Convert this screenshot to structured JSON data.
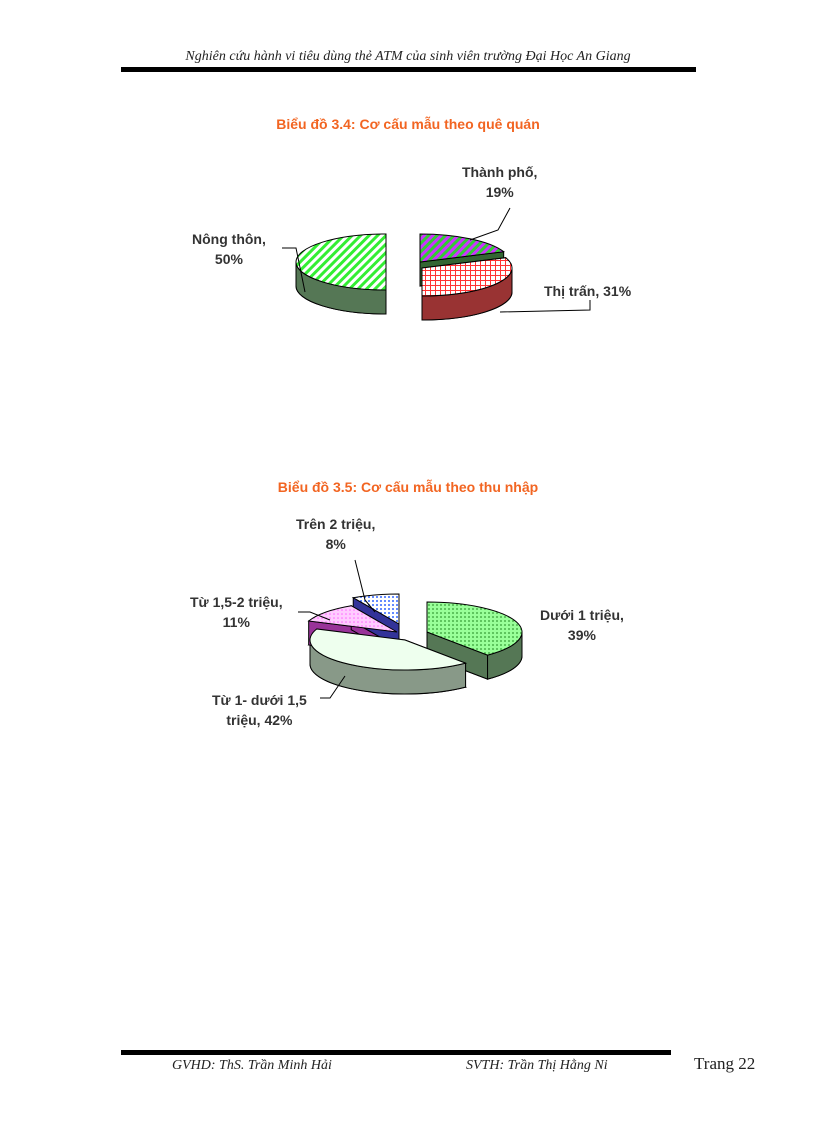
{
  "header": {
    "title": "Nghiên cứu hành vi tiêu dùng thẻ ATM của sinh viên trường Đại Học An Giang"
  },
  "footer": {
    "advisor": "GVHD: ThS. Trần Minh Hải",
    "student": "SVTH: Trần Thị Hằng Ni",
    "page": "Trang 22"
  },
  "chart_data": [
    {
      "type": "pie",
      "title": "Biểu đồ 3.4: Cơ cấu mẫu theo quê quán",
      "slices": [
        {
          "label": "Thành phố,",
          "value_label": "19%",
          "value": 19,
          "color": "#33cc33"
        },
        {
          "label": "Thị trấn,",
          "value_label": "31%",
          "value": 31,
          "color": "#ff3333"
        },
        {
          "label": "Nông thôn,",
          "value_label": "50%",
          "value": 50,
          "color": "#66ff66"
        }
      ]
    },
    {
      "type": "pie",
      "title": "Biểu đồ 3.5: Cơ cấu mẫu theo thu nhập",
      "slices": [
        {
          "label": "Dưới 1 triệu,",
          "value_label": "39%",
          "value": 39,
          "color": "#66ff66"
        },
        {
          "label": "Từ 1- dưới 1,5",
          "label2": "triệu,",
          "value_label": "42%",
          "value": 42,
          "color": "#ccffcc"
        },
        {
          "label": "Từ 1,5-2 triệu,",
          "value_label": "11%",
          "value": 11,
          "color": "#ff66ff"
        },
        {
          "label": "Trên 2 triệu,",
          "value_label": "8%",
          "value": 8,
          "color": "#3366ff"
        }
      ]
    }
  ]
}
